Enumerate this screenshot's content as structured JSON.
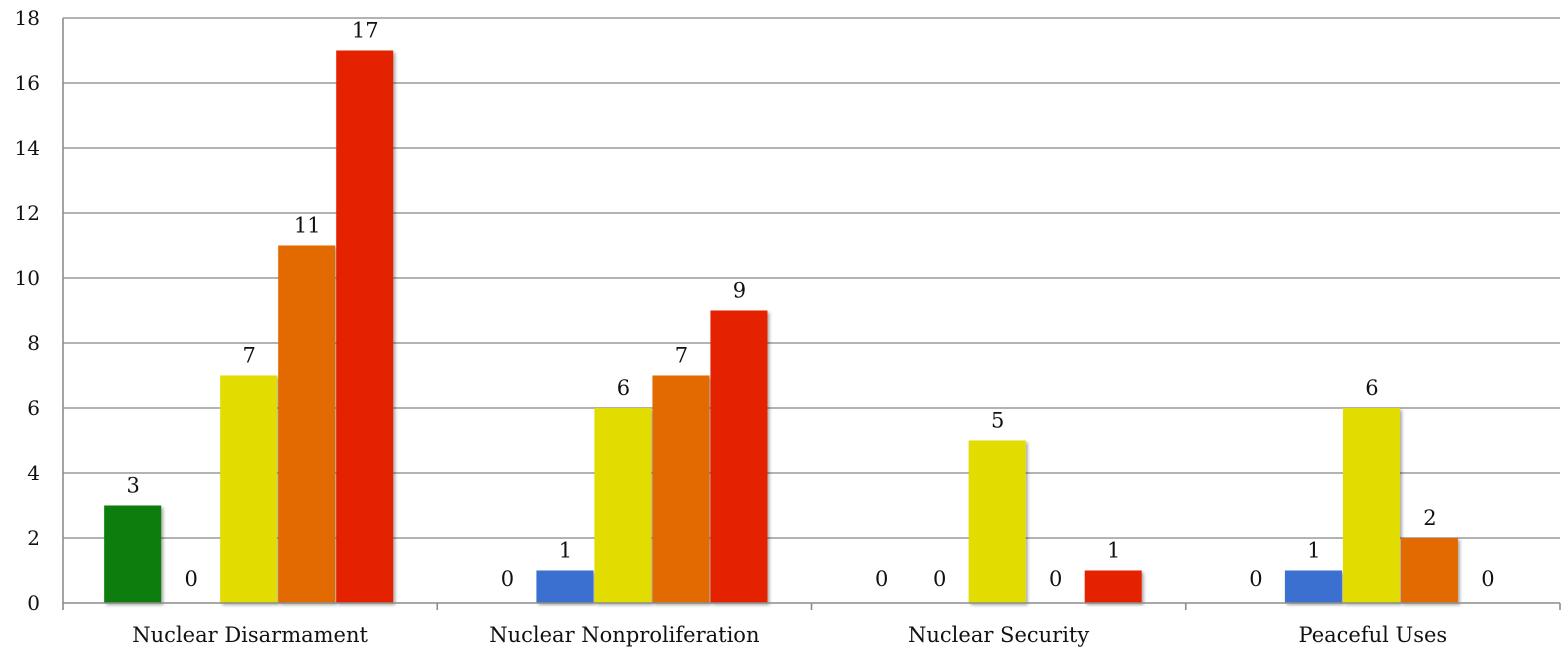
{
  "chart_data": {
    "type": "bar",
    "title": "",
    "xlabel": "",
    "ylabel": "",
    "categories": [
      "Nuclear Disarmament",
      "Nuclear Nonproliferation",
      "Nuclear Security",
      "Peaceful Uses"
    ],
    "ylim": [
      0,
      18
    ],
    "yticks": [
      0,
      2,
      4,
      6,
      8,
      10,
      12,
      14,
      16,
      18
    ],
    "grid": true,
    "legend": "none",
    "series": [
      {
        "color": "#0a7d0a",
        "values": [
          3,
          0,
          0,
          0
        ]
      },
      {
        "color": "#3a6fd0",
        "values": [
          0,
          1,
          0,
          1
        ]
      },
      {
        "color": "#e2dc00",
        "values": [
          7,
          6,
          5,
          6
        ]
      },
      {
        "color": "#e26a00",
        "values": [
          11,
          7,
          0,
          2
        ]
      },
      {
        "color": "#e52400",
        "values": [
          17,
          9,
          1,
          0
        ]
      }
    ]
  }
}
